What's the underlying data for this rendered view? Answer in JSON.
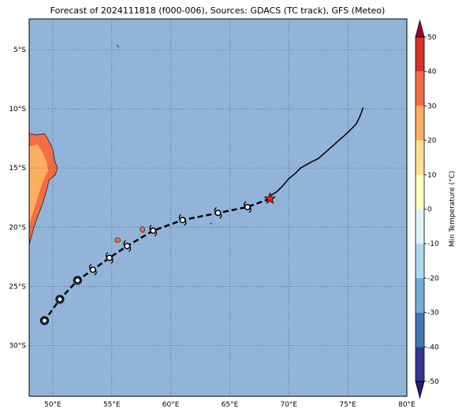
{
  "title": "Forecast of 2024111818 (f000-006), Sources: GDACS (TC track), GFS (Meteo)",
  "map": {
    "lon_range": [
      48,
      80
    ],
    "lat_range": [
      -34.3,
      -2.4
    ],
    "x_ticks": [
      {
        "lon": 50,
        "label": "50°E"
      },
      {
        "lon": 55,
        "label": "55°E"
      },
      {
        "lon": 60,
        "label": "60°E"
      },
      {
        "lon": 65,
        "label": "65°E"
      },
      {
        "lon": 70,
        "label": "70°E"
      },
      {
        "lon": 75,
        "label": "75°E"
      },
      {
        "lon": 80,
        "label": "80°E"
      }
    ],
    "y_ticks": [
      {
        "lat": -5,
        "label": "5°S"
      },
      {
        "lat": -10,
        "label": "10°S"
      },
      {
        "lat": -15,
        "label": "15°S"
      },
      {
        "lat": -20,
        "label": "20°S"
      },
      {
        "lat": -25,
        "label": "25°S"
      },
      {
        "lat": -30,
        "label": "30°S"
      }
    ],
    "ocean_color": "#92b4d8",
    "grid": true
  },
  "track": {
    "past_track": [
      [
        76.3,
        -9.9
      ],
      [
        76.0,
        -10.7
      ],
      [
        75.7,
        -11.3
      ],
      [
        75.0,
        -12.0
      ],
      [
        74.2,
        -12.7
      ],
      [
        73.3,
        -13.5
      ],
      [
        72.5,
        -14.2
      ],
      [
        71.7,
        -14.6
      ],
      [
        71.0,
        -15.0
      ],
      [
        70.5,
        -15.5
      ],
      [
        70.0,
        -15.9
      ],
      [
        69.5,
        -16.5
      ],
      [
        69.0,
        -17.0
      ],
      [
        68.5,
        -17.3
      ],
      [
        68.4,
        -17.6
      ]
    ],
    "forecast_track": [
      [
        68.4,
        -17.6
      ],
      [
        66.5,
        -18.3
      ],
      [
        64.0,
        -18.8
      ],
      [
        61.0,
        -19.4
      ],
      [
        58.5,
        -20.3
      ],
      [
        56.3,
        -21.6
      ],
      [
        54.8,
        -22.6
      ],
      [
        53.4,
        -23.6
      ],
      [
        52.1,
        -24.5
      ],
      [
        50.6,
        -26.1
      ],
      [
        49.3,
        -27.9
      ]
    ],
    "current_position": [
      68.4,
      -17.6
    ],
    "forecast_points": [
      {
        "lon": 66.5,
        "lat": -18.3,
        "symbol": "cyclone"
      },
      {
        "lon": 64.0,
        "lat": -18.8,
        "symbol": "cyclone"
      },
      {
        "lon": 61.0,
        "lat": -19.4,
        "symbol": "cyclone"
      },
      {
        "lon": 58.5,
        "lat": -20.3,
        "symbol": "cyclone"
      },
      {
        "lon": 56.3,
        "lat": -21.6,
        "symbol": "cyclone"
      },
      {
        "lon": 54.8,
        "lat": -22.6,
        "symbol": "cyclone"
      },
      {
        "lon": 53.4,
        "lat": -23.6,
        "symbol": "cyclone"
      },
      {
        "lon": 52.1,
        "lat": -24.5,
        "symbol": "depression"
      },
      {
        "lon": 50.6,
        "lat": -26.1,
        "symbol": "depression"
      },
      {
        "lon": 49.3,
        "lat": -27.9,
        "symbol": "depression"
      }
    ]
  },
  "colorbar": {
    "label": "Min Temperature (°C)",
    "min": -50,
    "max": 50,
    "ticks": [
      -50,
      -40,
      -30,
      -20,
      -10,
      0,
      10,
      20,
      30,
      40,
      50
    ],
    "colors": [
      "#313695",
      "#4575b4",
      "#74add1",
      "#abd9e9",
      "#e0f3f8",
      "#ffffbf",
      "#fee090",
      "#fdae61",
      "#f46d43",
      "#d73027"
    ],
    "over_color": "#a50026",
    "under_color": "#1f1f7a"
  },
  "land_colors": {
    "madagascar_warm": "#fdae61",
    "madagascar_hot": "#f46d43"
  },
  "icons": {
    "current": "red-star-icon",
    "forecast": "cyclone-symbol-icon"
  }
}
